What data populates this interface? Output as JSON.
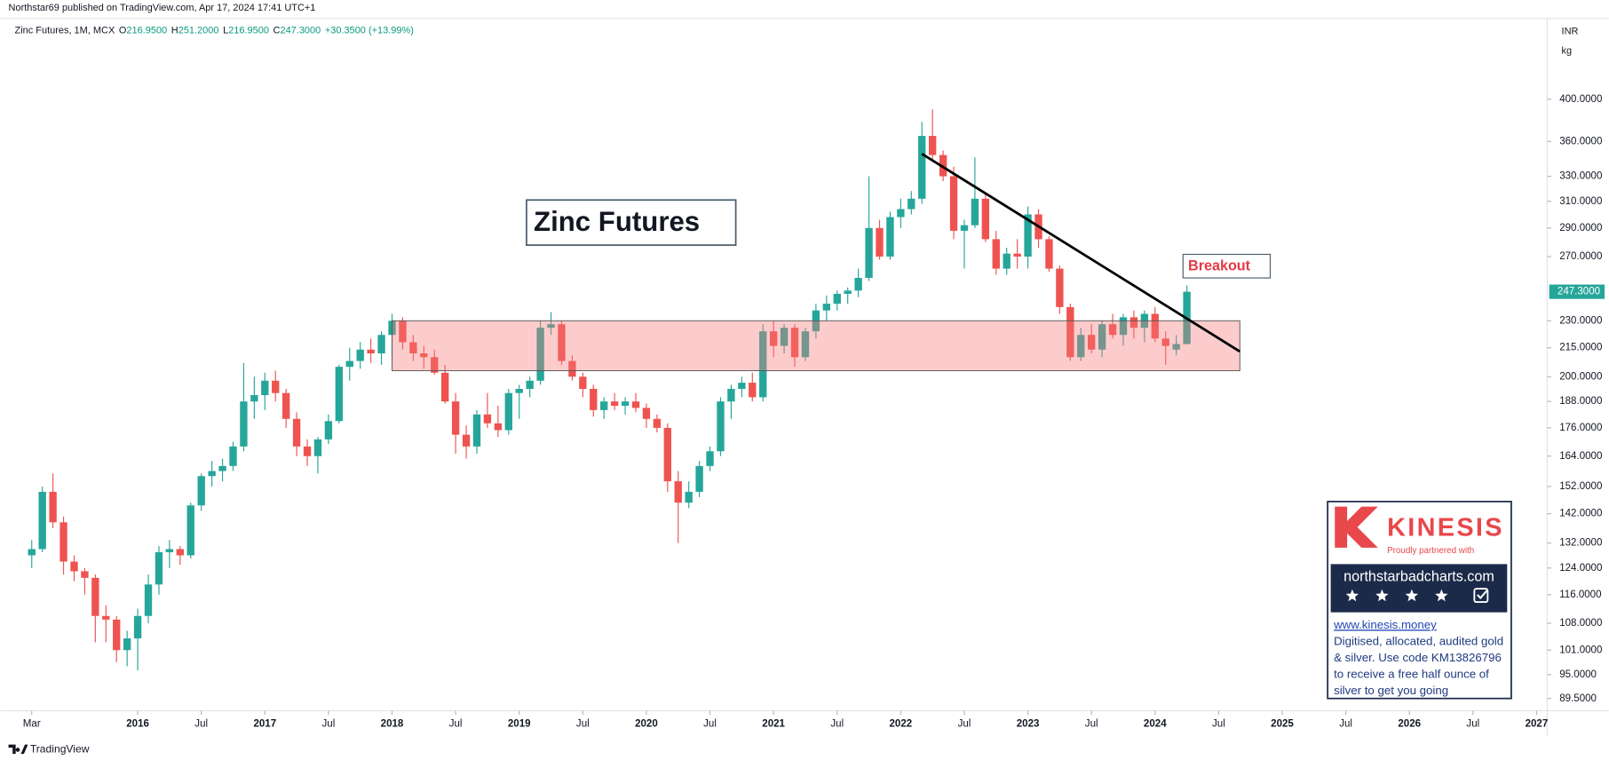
{
  "header": {
    "publisher": "Northstar69 published on TradingView.com, Apr 17, 2024 17:41 UTC+1",
    "symbol": "Zinc Futures, 1M, MCX",
    "ohlc": [
      {
        "key": "O",
        "value": "216.9500"
      },
      {
        "key": "H",
        "value": "251.2000"
      },
      {
        "key": "L",
        "value": "216.9500"
      },
      {
        "key": "C",
        "value": "247.3000"
      }
    ],
    "change": "+30.3500 (+13.99%)"
  },
  "currency": "INR",
  "unit": "kg",
  "footer": "TradingView",
  "ad": {
    "brand": "KINESIS",
    "tagline": "Proudly partnered with",
    "site": "northstarbadcharts.com",
    "link": "www.kinesis.money",
    "lines": [
      "Digitised, allocated, audited gold",
      "& silver. Use code KM13826796",
      "to receive a free half ounce of",
      "silver to get you going"
    ]
  },
  "chart_data": {
    "type": "candlestick",
    "log_scale": true,
    "grid": false,
    "up_color": "#26a69a",
    "down_color": "#ef5350",
    "annotations": [
      "Zinc Futures",
      "Breakout"
    ],
    "last_label": "247.3000",
    "xlim": [
      "2015-01",
      "2027-02"
    ],
    "xticks": [
      {
        "value": "2015-03",
        "label": "Mar"
      },
      {
        "value": "2016-01",
        "label": "2016"
      },
      {
        "value": "2016-07",
        "label": "Jul"
      },
      {
        "value": "2017-01",
        "label": "2017"
      },
      {
        "value": "2017-07",
        "label": "Jul"
      },
      {
        "value": "2018-01",
        "label": "2018"
      },
      {
        "value": "2018-07",
        "label": "Jul"
      },
      {
        "value": "2019-01",
        "label": "2019"
      },
      {
        "value": "2019-07",
        "label": "Jul"
      },
      {
        "value": "2020-01",
        "label": "2020"
      },
      {
        "value": "2020-07",
        "label": "Jul"
      },
      {
        "value": "2021-01",
        "label": "2021"
      },
      {
        "value": "2021-07",
        "label": "Jul"
      },
      {
        "value": "2022-01",
        "label": "2022"
      },
      {
        "value": "2022-07",
        "label": "Jul"
      },
      {
        "value": "2023-01",
        "label": "2023"
      },
      {
        "value": "2023-07",
        "label": "Jul"
      },
      {
        "value": "2024-01",
        "label": "2024"
      },
      {
        "value": "2024-07",
        "label": "Jul"
      },
      {
        "value": "2025-01",
        "label": "2025"
      },
      {
        "value": "2025-07",
        "label": "Jul"
      },
      {
        "value": "2026-01",
        "label": "2026"
      },
      {
        "value": "2026-07",
        "label": "Jul"
      },
      {
        "value": "2027-01",
        "label": "2027"
      }
    ],
    "ylim": [
      86.8,
      487
    ],
    "yticks": [
      {
        "value": 400,
        "label": "400.0000"
      },
      {
        "value": 360,
        "label": "360.0000"
      },
      {
        "value": 330,
        "label": "330.0000"
      },
      {
        "value": 310,
        "label": "310.0000"
      },
      {
        "value": 290,
        "label": "290.0000"
      },
      {
        "value": 270,
        "label": "270.0000"
      },
      {
        "value": 230,
        "label": "230.0000"
      },
      {
        "value": 215,
        "label": "215.0000"
      },
      {
        "value": 200,
        "label": "200.0000"
      },
      {
        "value": 188,
        "label": "188.0000"
      },
      {
        "value": 176,
        "label": "176.0000"
      },
      {
        "value": 164,
        "label": "164.0000"
      },
      {
        "value": 152,
        "label": "152.0000"
      },
      {
        "value": 142,
        "label": "142.0000"
      },
      {
        "value": 132,
        "label": "132.0000"
      },
      {
        "value": 124,
        "label": "124.0000"
      },
      {
        "value": 116,
        "label": "116.0000"
      },
      {
        "value": 108,
        "label": "108.0000"
      },
      {
        "value": 101,
        "label": "101.0000"
      },
      {
        "value": 95,
        "label": "95.0000"
      },
      {
        "value": 89.5,
        "label": "89.5000"
      }
    ],
    "zone": {
      "x": [
        "2018-01",
        "2024-09"
      ],
      "values": [
        203,
        230
      ]
    },
    "trendline": {
      "x": [
        "2022-03",
        "2024-09"
      ],
      "values": [
        349,
        213
      ]
    },
    "x": [
      "2015-03",
      "2015-04",
      "2015-05",
      "2015-06",
      "2015-07",
      "2015-08",
      "2015-09",
      "2015-10",
      "2015-11",
      "2015-12",
      "2016-01",
      "2016-02",
      "2016-03",
      "2016-04",
      "2016-05",
      "2016-06",
      "2016-07",
      "2016-08",
      "2016-09",
      "2016-10",
      "2016-11",
      "2016-12",
      "2017-01",
      "2017-02",
      "2017-03",
      "2017-04",
      "2017-05",
      "2017-06",
      "2017-07",
      "2017-08",
      "2017-09",
      "2017-10",
      "2017-11",
      "2017-12",
      "2018-01",
      "2018-02",
      "2018-03",
      "2018-04",
      "2018-05",
      "2018-06",
      "2018-07",
      "2018-08",
      "2018-09",
      "2018-10",
      "2018-11",
      "2018-12",
      "2019-01",
      "2019-02",
      "2019-03",
      "2019-04",
      "2019-05",
      "2019-06",
      "2019-07",
      "2019-08",
      "2019-09",
      "2019-10",
      "2019-11",
      "2019-12",
      "2020-01",
      "2020-02",
      "2020-03",
      "2020-04",
      "2020-05",
      "2020-06",
      "2020-07",
      "2020-08",
      "2020-09",
      "2020-10",
      "2020-11",
      "2020-12",
      "2021-01",
      "2021-02",
      "2021-03",
      "2021-04",
      "2021-05",
      "2021-06",
      "2021-07",
      "2021-08",
      "2021-09",
      "2021-10",
      "2021-11",
      "2021-12",
      "2022-01",
      "2022-02",
      "2022-03",
      "2022-04",
      "2022-05",
      "2022-06",
      "2022-07",
      "2022-08",
      "2022-09",
      "2022-10",
      "2022-11",
      "2022-12",
      "2023-01",
      "2023-02",
      "2023-03",
      "2023-04",
      "2023-05",
      "2023-06",
      "2023-07",
      "2023-08",
      "2023-09",
      "2023-10",
      "2023-11",
      "2023-12",
      "2024-01",
      "2024-02",
      "2024-03",
      "2024-04"
    ],
    "open": [
      128,
      130,
      150,
      139,
      126,
      123,
      121,
      110,
      109,
      101,
      104,
      110,
      119,
      129,
      130,
      128,
      145,
      156,
      158,
      160,
      168,
      188,
      191,
      198,
      192,
      180,
      168,
      164,
      171,
      179,
      205,
      208,
      214,
      212,
      222,
      230,
      218,
      212,
      210,
      202,
      188,
      173,
      168,
      182,
      178,
      175,
      192,
      194,
      198,
      226,
      228,
      208,
      200,
      194,
      184,
      188,
      186,
      188,
      185,
      180,
      176,
      154,
      146,
      150,
      160,
      166,
      188,
      194,
      197,
      190,
      224,
      216,
      226,
      210,
      224,
      236,
      240,
      246,
      248,
      256,
      290,
      270,
      298,
      304,
      312,
      365,
      348,
      330,
      288,
      292,
      312,
      282,
      262,
      272,
      270,
      300,
      282,
      262,
      238,
      210,
      222,
      214,
      228,
      222,
      232,
      226,
      234,
      220,
      214,
      216.95
    ],
    "high": [
      133,
      152,
      157,
      141,
      128,
      124,
      122,
      113,
      110,
      106,
      112,
      122,
      131,
      133,
      131,
      146,
      157,
      162,
      163,
      170,
      207,
      200,
      202,
      203,
      194,
      183,
      171,
      172,
      182,
      206,
      215,
      218,
      220,
      224,
      234,
      232,
      222,
      216,
      214,
      206,
      192,
      177,
      184,
      192,
      186,
      194,
      196,
      200,
      230,
      235,
      230,
      211,
      202,
      196,
      190,
      192,
      190,
      192,
      187,
      182,
      178,
      158,
      154,
      162,
      168,
      190,
      196,
      200,
      202,
      228,
      230,
      228,
      228,
      226,
      240,
      245,
      248,
      250,
      262,
      330,
      296,
      302,
      312,
      318,
      378,
      390,
      352,
      338,
      296,
      346,
      316,
      288,
      276,
      282,
      306,
      304,
      284,
      264,
      240,
      226,
      228,
      230,
      234,
      234,
      236,
      236,
      238,
      224,
      222,
      251.2
    ],
    "low": [
      124,
      129,
      137,
      122,
      120,
      116,
      103,
      103,
      98,
      97,
      96,
      108,
      116,
      124,
      125,
      127,
      143,
      152,
      154,
      158,
      166,
      180,
      184,
      188,
      176,
      164,
      160,
      157,
      169,
      178,
      198,
      204,
      207,
      206,
      210,
      214,
      208,
      204,
      201,
      187,
      165,
      163,
      165,
      176,
      172,
      173,
      180,
      190,
      196,
      222,
      206,
      198,
      190,
      181,
      180,
      184,
      182,
      183,
      176,
      174,
      150,
      132,
      144,
      148,
      158,
      164,
      180,
      190,
      188,
      188,
      210,
      212,
      205,
      208,
      220,
      230,
      236,
      240,
      244,
      254,
      268,
      268,
      290,
      300,
      308,
      342,
      326,
      282,
      262,
      290,
      280,
      258,
      258,
      262,
      262,
      276,
      260,
      234,
      208,
      208,
      212,
      210,
      220,
      216,
      220,
      218,
      218,
      206,
      211,
      216.95
    ],
    "close": [
      130,
      150,
      139,
      126,
      123,
      121,
      110,
      109,
      101,
      104,
      110,
      119,
      129,
      130,
      128,
      145,
      156,
      158,
      160,
      168,
      188,
      191,
      198,
      192,
      180,
      168,
      164,
      171,
      179,
      205,
      208,
      214,
      212,
      222,
      230,
      218,
      212,
      210,
      202,
      188,
      173,
      168,
      182,
      178,
      175,
      192,
      194,
      198,
      226,
      228,
      208,
      200,
      194,
      184,
      188,
      186,
      188,
      185,
      180,
      176,
      154,
      146,
      150,
      160,
      166,
      188,
      194,
      197,
      190,
      224,
      216,
      226,
      210,
      224,
      236,
      240,
      246,
      248,
      256,
      290,
      270,
      298,
      304,
      312,
      365,
      348,
      330,
      288,
      292,
      312,
      282,
      262,
      272,
      270,
      300,
      282,
      262,
      238,
      210,
      222,
      214,
      228,
      222,
      232,
      226,
      234,
      220,
      216,
      217,
      247.3
    ]
  }
}
